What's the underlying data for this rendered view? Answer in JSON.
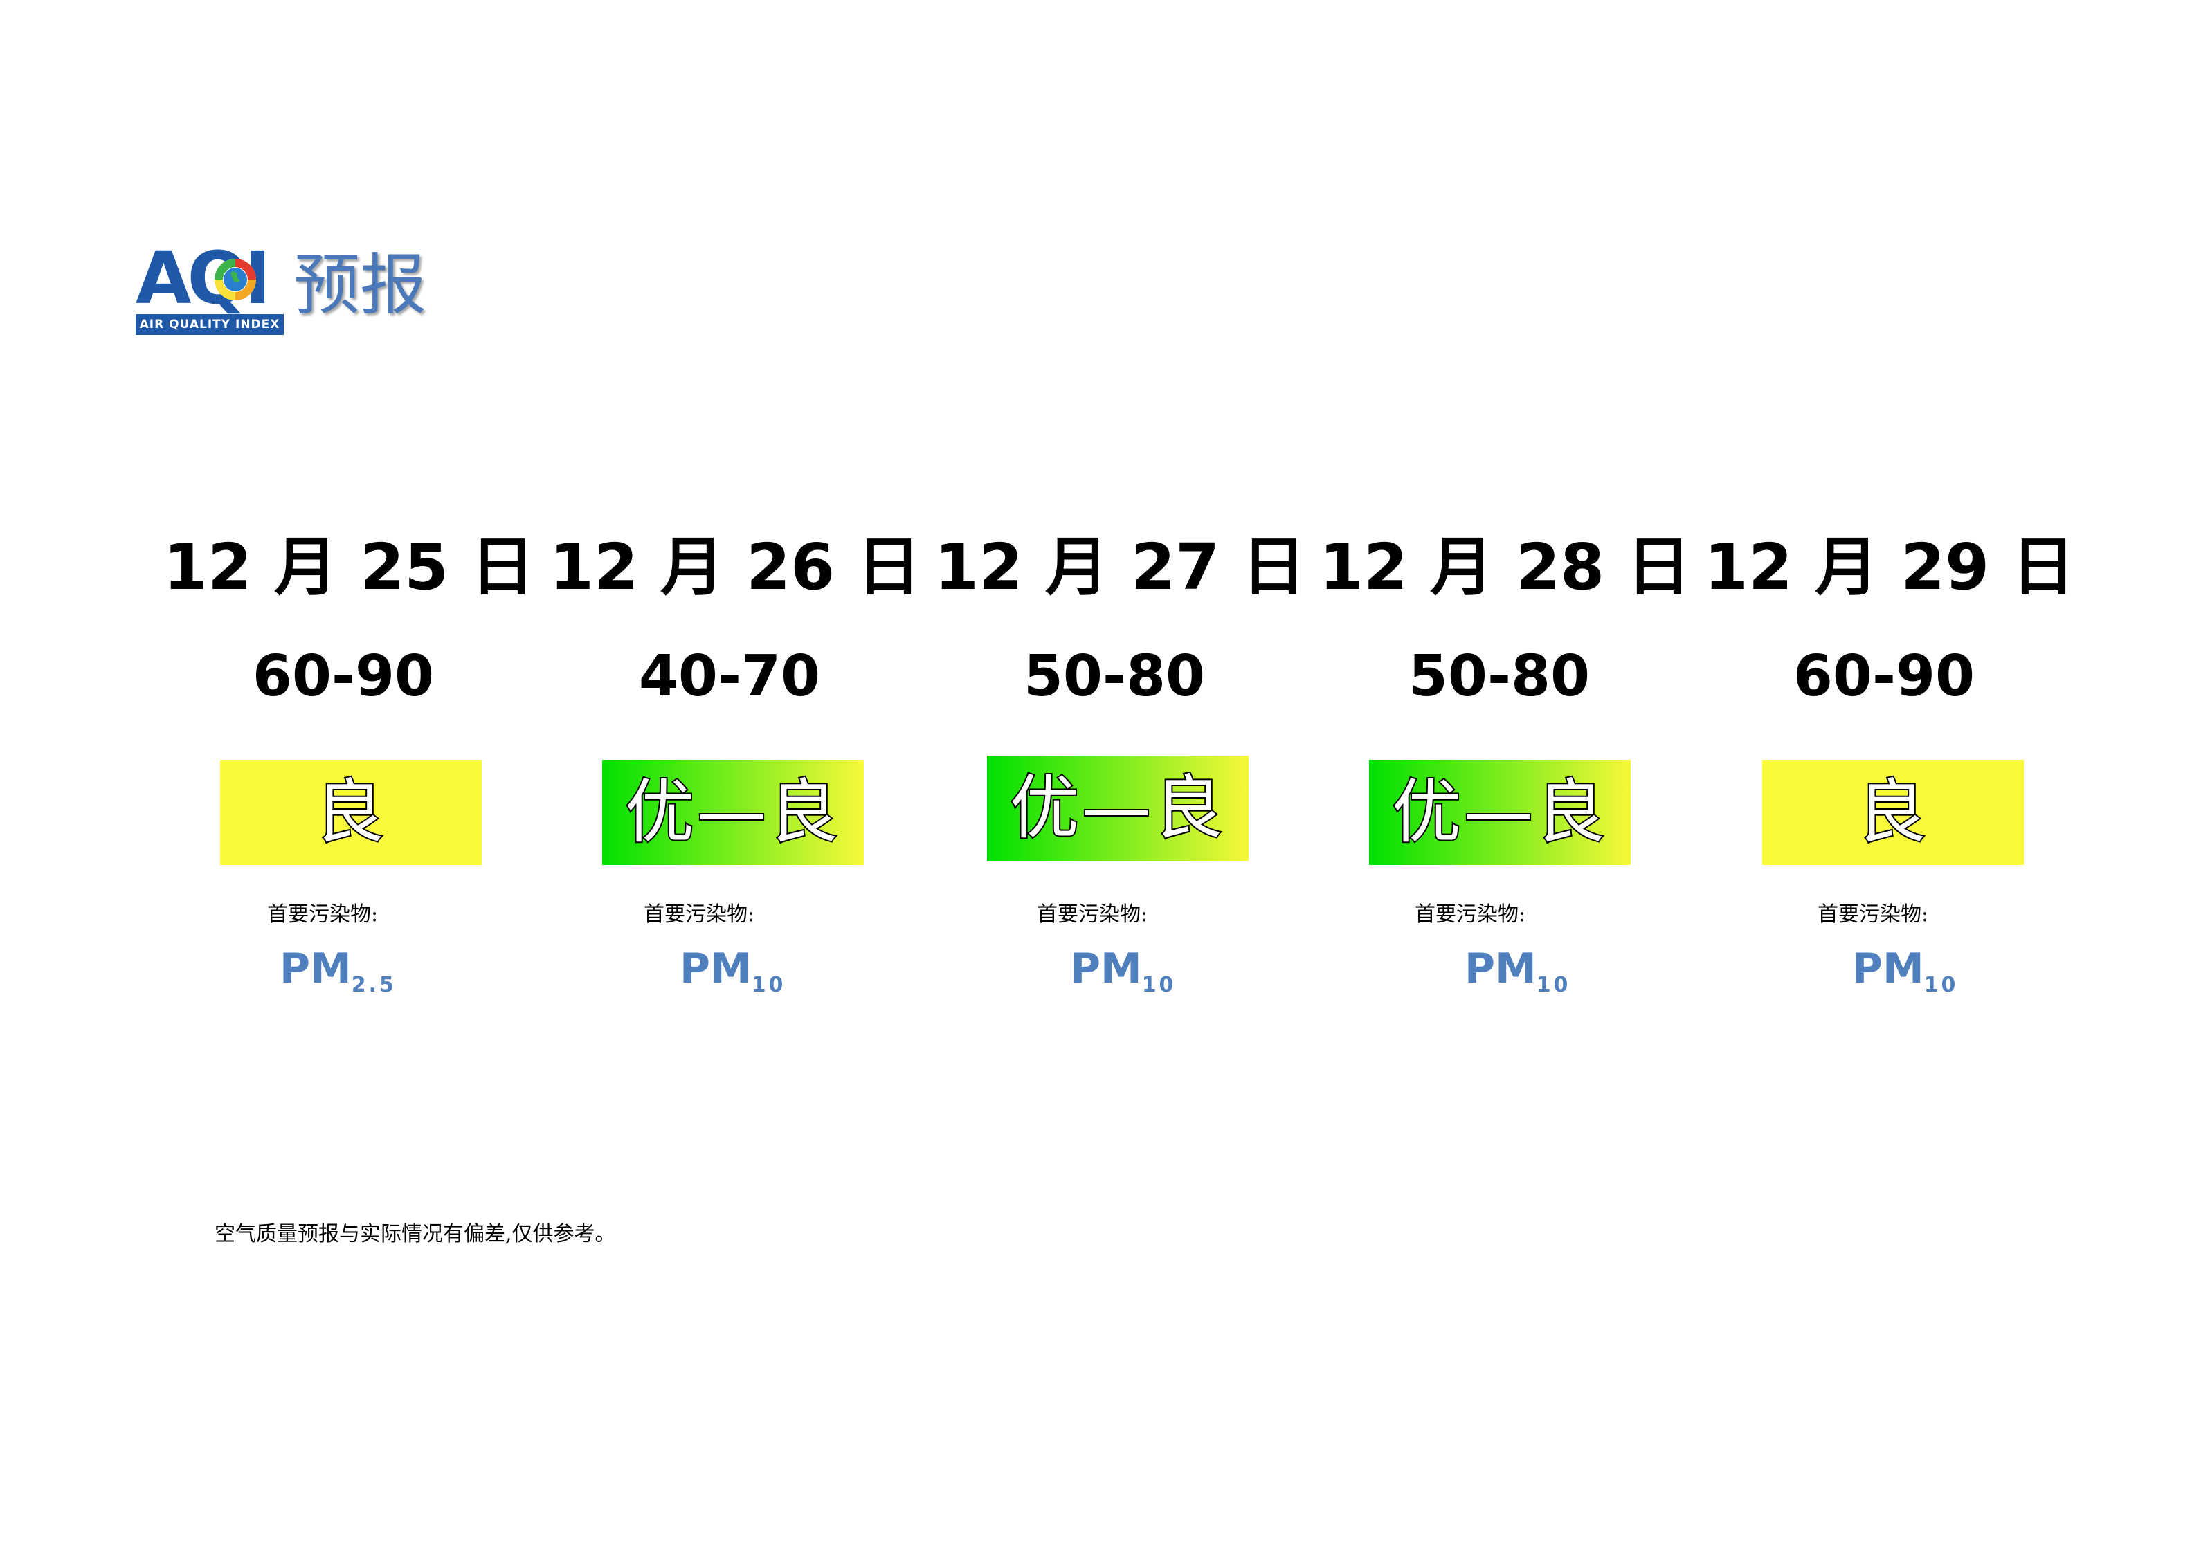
{
  "logo": {
    "letters": "AQI",
    "tagline": "AIR QUALITY INDEX",
    "title": "预报"
  },
  "days": [
    {
      "date": "12 月 25 日",
      "range": "60-90",
      "level": "良",
      "level_color_start": "#f7f93a",
      "level_color_end": "#f7f93a",
      "pollutant_label": "首要污染物:",
      "pollutant": "PM",
      "pollutant_sub": "2.5"
    },
    {
      "date": "12 月 26 日",
      "range": "40-70",
      "level": "优—良",
      "level_color_start": "#00e000",
      "level_color_end": "#f7f93a",
      "pollutant_label": "首要污染物:",
      "pollutant": "PM",
      "pollutant_sub": "10"
    },
    {
      "date": "12 月 27 日",
      "range": "50-80",
      "level": "优—良",
      "level_color_start": "#00e000",
      "level_color_end": "#f7f93a",
      "pollutant_label": "首要污染物:",
      "pollutant": "PM",
      "pollutant_sub": "10"
    },
    {
      "date": "12 月 28 日",
      "range": "50-80",
      "level": "优—良",
      "level_color_start": "#00e000",
      "level_color_end": "#f7f93a",
      "pollutant_label": "首要污染物:",
      "pollutant": "PM",
      "pollutant_sub": "10"
    },
    {
      "date": "12 月 29 日",
      "range": "60-90",
      "level": "良",
      "level_color_start": "#f7f93a",
      "level_color_end": "#f7f93a",
      "pollutant_label": "首要污染物:",
      "pollutant": "PM",
      "pollutant_sub": "10"
    }
  ],
  "footnote": "空气质量预报与实际情况有偏差,仅供参考。"
}
